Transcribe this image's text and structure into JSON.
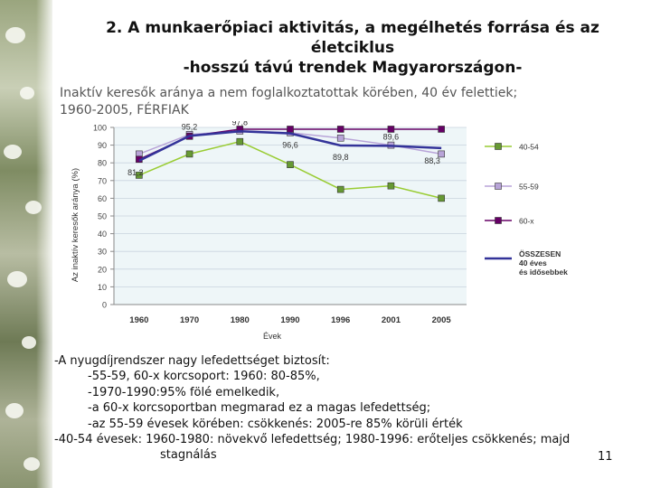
{
  "slide": {
    "title_line1": "2. A munkaerőpiaci aktivitás, a megélhetés forrása és az",
    "title_line2": "életciklus",
    "title_line3": "-hosszú távú trendek Magyarországon-",
    "subtitle_line1": "Inaktív keresők aránya a nem foglalkoztatottak körében, 40 év felettiek;",
    "subtitle_line2": "1960-2005, FÉRFIAK",
    "notes": [
      "-A nyugdíjrendszer nagy lefedettséget biztosít:",
      "-55-59, 60-x korcsoport: 1960: 80-85%,",
      "-1970-1990:95% fölé emelkedik,",
      "-a 60-x korcsoportban megmarad ez a magas lefedettség;",
      "-az 55-59 évesek körében: csökkenés: 2005-re 85% körüli érték",
      "-40-54 évesek: 1960-1980: növekvő lefedettség; 1980-1996: erőteljes csökkenés; majd",
      "stagnálás"
    ],
    "page_number": "11"
  },
  "chart_data": {
    "type": "line",
    "categories": [
      "1960",
      "1970",
      "1980",
      "1990",
      "1996",
      "2001",
      "2005"
    ],
    "ylim": [
      0,
      100
    ],
    "yticks": [
      "0",
      "10",
      "20",
      "30",
      "40",
      "50",
      "60",
      "70",
      "80",
      "90",
      "100"
    ],
    "xlabel": "Évek",
    "ylabel": "Az inaktív keresők aránya (%)",
    "series": [
      {
        "name": "40-54",
        "color": "#99cc33",
        "marker": "#669933",
        "values": [
          73,
          85,
          92,
          79,
          65,
          67,
          60
        ]
      },
      {
        "name": "55-59",
        "color": "#b8a4d8",
        "marker": "#b8a4d8",
        "values": [
          85,
          96,
          98,
          97,
          94,
          90,
          85
        ]
      },
      {
        "name": "60-x",
        "color": "#660066",
        "marker": "#660066",
        "values": [
          82,
          95,
          99,
          99,
          99,
          99,
          99
        ]
      },
      {
        "name": "ÖSSZESEN 40 éves és idősebbek",
        "color": "#333399",
        "marker": null,
        "values": [
          81.2,
          95.2,
          97.8,
          96.6,
          89.8,
          89.6,
          88.3
        ]
      }
    ],
    "data_labels": [
      "81,2",
      "95,2",
      "97,8",
      "96,6",
      "89,8",
      "89,6",
      "88,3"
    ],
    "legend_position": "right"
  }
}
